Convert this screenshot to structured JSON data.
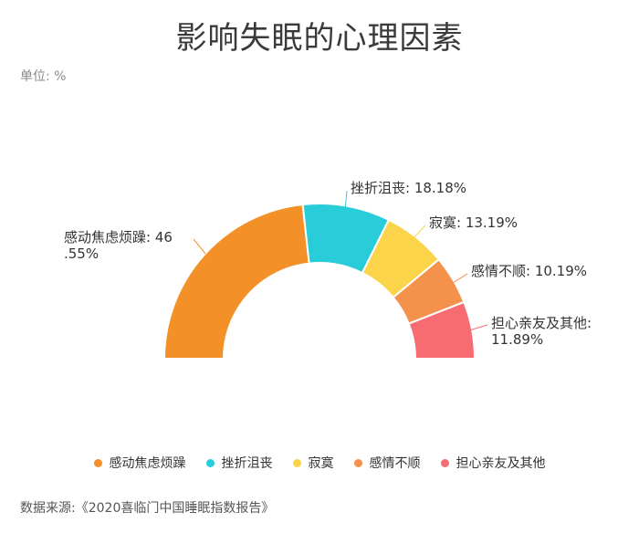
{
  "chart_data": {
    "type": "pie",
    "variant": "half-donut",
    "title": "影响失眠的心理因素",
    "unit_label": "单位: %",
    "source": "数据来源:《2020喜临门中国睡眠指数报告》",
    "legend_placement": "bottom",
    "slices": [
      {
        "name": "感动焦虑烦躁",
        "value": 46.55,
        "label_lines": [
          "感动焦虑烦躁: 46",
          ".55%"
        ],
        "color": "#f39128"
      },
      {
        "name": "挫折沮丧",
        "value": 18.18,
        "label_lines": [
          "挫折沮丧: 18.18%"
        ],
        "color": "#29ccd9"
      },
      {
        "name": "寂寞",
        "value": 13.19,
        "label_lines": [
          "寂寞: 13.19%"
        ],
        "color": "#fbd44a"
      },
      {
        "name": "感情不顺",
        "value": 10.19,
        "label_lines": [
          "感情不顺: 10.19%"
        ],
        "color": "#f4924c"
      },
      {
        "name": "担心亲友及其他",
        "value": 11.89,
        "label_lines": [
          "担心亲友及其他:",
          "11.89%"
        ],
        "color": "#f76c72"
      }
    ]
  }
}
